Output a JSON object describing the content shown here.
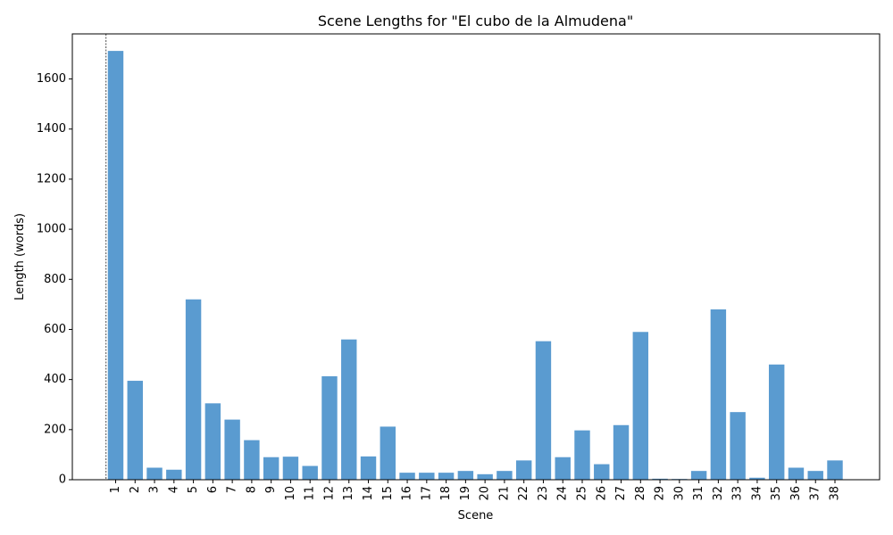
{
  "chart_data": {
    "type": "bar",
    "title": "Scene Lengths for \"El cubo de la Almudena\"",
    "xlabel": "Scene",
    "ylabel": "Length (words)",
    "ylim": [
      0,
      1780
    ],
    "yticks": [
      0,
      200,
      400,
      600,
      800,
      1000,
      1200,
      1400,
      1600
    ],
    "bar_color": "#5a9bd0",
    "grid": false,
    "categories": [
      "1",
      "2",
      "3",
      "4",
      "5",
      "6",
      "7",
      "8",
      "9",
      "10",
      "11",
      "12",
      "13",
      "14",
      "15",
      "16",
      "17",
      "18",
      "19",
      "20",
      "21",
      "22",
      "23",
      "24",
      "25",
      "26",
      "27",
      "28",
      "29",
      "30",
      "31",
      "32",
      "33",
      "34",
      "35",
      "36",
      "37",
      "38"
    ],
    "values": [
      1712,
      395,
      48,
      40,
      720,
      305,
      240,
      158,
      90,
      92,
      55,
      413,
      560,
      93,
      212,
      28,
      28,
      28,
      35,
      22,
      35,
      77,
      553,
      90,
      197,
      62,
      218,
      590,
      4,
      3,
      35,
      680,
      270,
      8,
      460,
      48,
      35,
      77
    ],
    "annotations": [
      {
        "type": "vline",
        "at": "1",
        "style": "dashed"
      }
    ]
  }
}
